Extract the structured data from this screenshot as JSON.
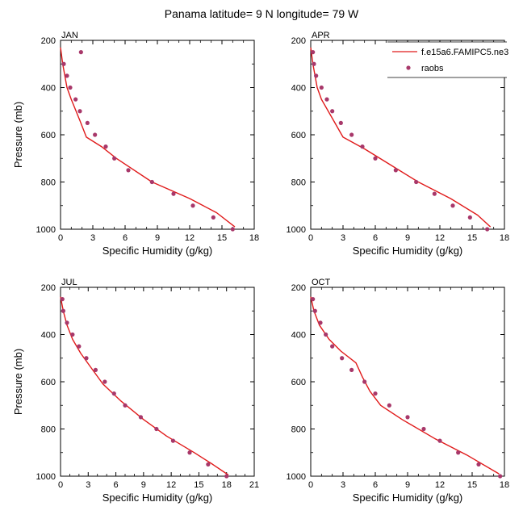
{
  "title": "Panama  latitude= 9 N longitude= 79 W",
  "legend": {
    "model_label": "f.e15a6.FAMIPC5.ne3",
    "obs_label": "raobs"
  },
  "colors": {
    "model": "#e01a1a",
    "obs": "#a8386a"
  },
  "chart_data": [
    {
      "type": "line",
      "panel": "JAN",
      "xlabel": "Specific Humidity (g/kg)",
      "ylabel": "Pressure (mb)",
      "xlim": [
        0,
        18
      ],
      "ylim": [
        200,
        1000
      ],
      "y_reversed": true,
      "xticks": [
        0,
        3,
        6,
        9,
        12,
        15,
        18
      ],
      "yticks": [
        200,
        400,
        600,
        800,
        1000
      ],
      "series": [
        {
          "name": "f.e15a6.FAMIPC5.ne3",
          "style": "line",
          "x": [
            0.0,
            0.2,
            0.6,
            1.0,
            1.8,
            2.4,
            3.8,
            5.2,
            8.5,
            12.0,
            14.5,
            16.2
          ],
          "y": [
            230,
            300,
            400,
            450,
            540,
            610,
            650,
            700,
            800,
            870,
            930,
            990
          ]
        },
        {
          "name": "raobs",
          "style": "points",
          "x": [
            1.9,
            0.3,
            0.6,
            0.9,
            1.4,
            1.8,
            2.5,
            3.2,
            4.2,
            5.0,
            6.3,
            8.5,
            10.5,
            12.3,
            14.2,
            16.0
          ],
          "y": [
            250,
            300,
            350,
            400,
            450,
            500,
            550,
            600,
            650,
            700,
            750,
            800,
            850,
            900,
            950,
            1000
          ]
        }
      ]
    },
    {
      "type": "line",
      "panel": "APR",
      "xlabel": "Specific Humidity (g/kg)",
      "ylabel": "",
      "xlim": [
        0,
        18
      ],
      "ylim": [
        200,
        1000
      ],
      "y_reversed": true,
      "xticks": [
        0,
        3,
        6,
        9,
        12,
        15,
        18
      ],
      "yticks": [
        200,
        400,
        600,
        800,
        1000
      ],
      "series": [
        {
          "name": "f.e15a6.FAMIPC5.ne3",
          "style": "line",
          "x": [
            0.0,
            0.2,
            0.6,
            1.0,
            2.0,
            3.0,
            5.0,
            7.5,
            10.0,
            13.0,
            15.5,
            16.7
          ],
          "y": [
            230,
            300,
            400,
            450,
            530,
            610,
            660,
            730,
            800,
            870,
            940,
            990
          ]
        },
        {
          "name": "raobs",
          "style": "points",
          "x": [
            0.2,
            0.3,
            0.5,
            1.0,
            1.5,
            2.0,
            2.8,
            3.8,
            4.8,
            6.0,
            7.9,
            9.8,
            11.5,
            13.2,
            14.8,
            16.4
          ],
          "y": [
            250,
            300,
            350,
            400,
            450,
            500,
            550,
            600,
            650,
            700,
            750,
            800,
            850,
            900,
            950,
            1000
          ]
        }
      ]
    },
    {
      "type": "line",
      "panel": "JUL",
      "xlabel": "Specific Humidity (g/kg)",
      "ylabel": "Pressure (mb)",
      "xlim": [
        0,
        21
      ],
      "ylim": [
        200,
        1000
      ],
      "y_reversed": true,
      "xticks": [
        0,
        3,
        6,
        9,
        12,
        15,
        18,
        21
      ],
      "yticks": [
        200,
        400,
        600,
        800,
        1000
      ],
      "series": [
        {
          "name": "f.e15a6.FAMIPC5.ne3",
          "style": "line",
          "x": [
            0.0,
            0.3,
            0.7,
            1.3,
            2.2,
            3.3,
            4.6,
            6.5,
            9.0,
            11.5,
            14.5,
            16.5,
            18.2
          ],
          "y": [
            240,
            300,
            360,
            420,
            480,
            540,
            610,
            680,
            760,
            830,
            900,
            950,
            995
          ]
        },
        {
          "name": "raobs",
          "style": "points",
          "x": [
            0.2,
            0.3,
            0.7,
            1.3,
            2.0,
            2.8,
            3.8,
            4.8,
            5.8,
            7.0,
            8.7,
            10.4,
            12.2,
            14.0,
            16.0,
            18.0
          ],
          "y": [
            250,
            300,
            350,
            400,
            450,
            500,
            550,
            600,
            650,
            700,
            750,
            800,
            850,
            900,
            950,
            1000
          ]
        }
      ]
    },
    {
      "type": "line",
      "panel": "OCT",
      "xlabel": "Specific Humidity (g/kg)",
      "ylabel": "",
      "xlim": [
        0,
        18
      ],
      "ylim": [
        200,
        1000
      ],
      "y_reversed": true,
      "xticks": [
        0,
        3,
        6,
        9,
        12,
        15,
        18
      ],
      "yticks": [
        200,
        400,
        600,
        800,
        1000
      ],
      "series": [
        {
          "name": "f.e15a6.FAMIPC5.ne3",
          "style": "line",
          "x": [
            0.0,
            0.3,
            0.8,
            1.7,
            2.8,
            4.2,
            4.8,
            5.5,
            6.5,
            8.5,
            11.5,
            14.5,
            17.5
          ],
          "y": [
            240,
            300,
            360,
            420,
            470,
            520,
            580,
            640,
            700,
            760,
            840,
            910,
            990
          ]
        },
        {
          "name": "raobs",
          "style": "points",
          "x": [
            0.2,
            0.4,
            0.9,
            1.4,
            2.0,
            2.9,
            3.8,
            5.0,
            6.0,
            7.3,
            9.0,
            10.5,
            12.0,
            13.7,
            15.6,
            17.6
          ],
          "y": [
            250,
            300,
            350,
            400,
            450,
            500,
            550,
            600,
            650,
            700,
            750,
            800,
            850,
            900,
            950,
            1000
          ]
        }
      ]
    }
  ]
}
